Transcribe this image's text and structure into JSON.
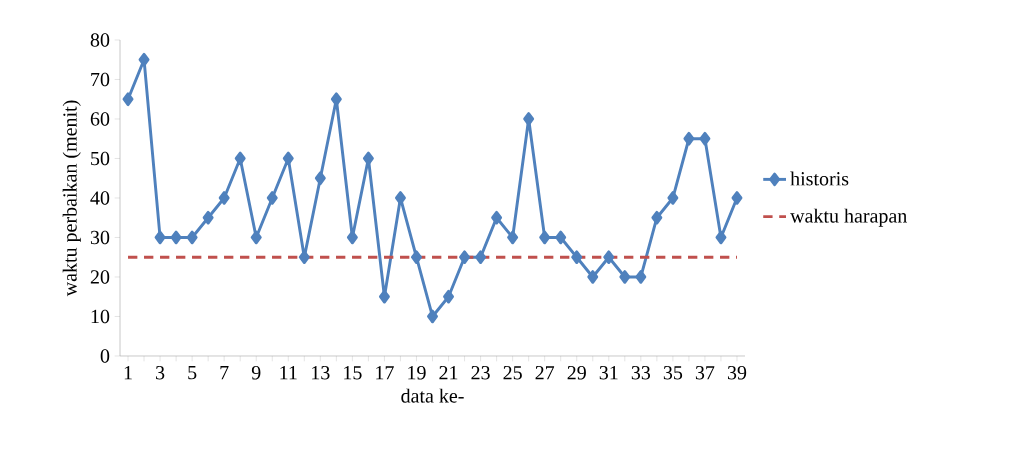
{
  "chart_data": {
    "type": "line",
    "xlabel": "data ke-",
    "ylabel": "waktu perbaikan (menit)",
    "categories": [
      "1",
      null,
      "3",
      null,
      "5",
      null,
      "7",
      null,
      "9",
      null,
      "11",
      null,
      "13",
      null,
      "15",
      null,
      "17",
      null,
      "19",
      null,
      "21",
      null,
      "23",
      null,
      "25",
      null,
      "27",
      null,
      "29",
      null,
      "31",
      null,
      "33",
      null,
      "35",
      null,
      "37",
      null,
      "39"
    ],
    "series": [
      {
        "name": "historis",
        "color": "#4f81bd",
        "marker": "diamond",
        "line_style": "solid",
        "values": [
          65,
          75,
          30,
          30,
          30,
          35,
          40,
          50,
          30,
          40,
          50,
          25,
          45,
          65,
          30,
          50,
          15,
          40,
          25,
          10,
          15,
          25,
          25,
          35,
          30,
          60,
          30,
          30,
          25,
          20,
          25,
          20,
          20,
          35,
          40,
          55,
          55,
          30,
          40
        ]
      },
      {
        "name": "waktu harapan",
        "color": "#c0504d",
        "marker": "none",
        "line_style": "dashed",
        "values": [
          25,
          25,
          25,
          25,
          25,
          25,
          25,
          25,
          25,
          25,
          25,
          25,
          25,
          25,
          25,
          25,
          25,
          25,
          25,
          25,
          25,
          25,
          25,
          25,
          25,
          25,
          25,
          25,
          25,
          25,
          25,
          25,
          25,
          25,
          25,
          25,
          25,
          25,
          25
        ]
      }
    ],
    "ylim": [
      0,
      80
    ],
    "yticks": [
      0,
      10,
      20,
      30,
      40,
      50,
      60,
      70,
      80
    ],
    "grid": false,
    "legend": "right"
  }
}
